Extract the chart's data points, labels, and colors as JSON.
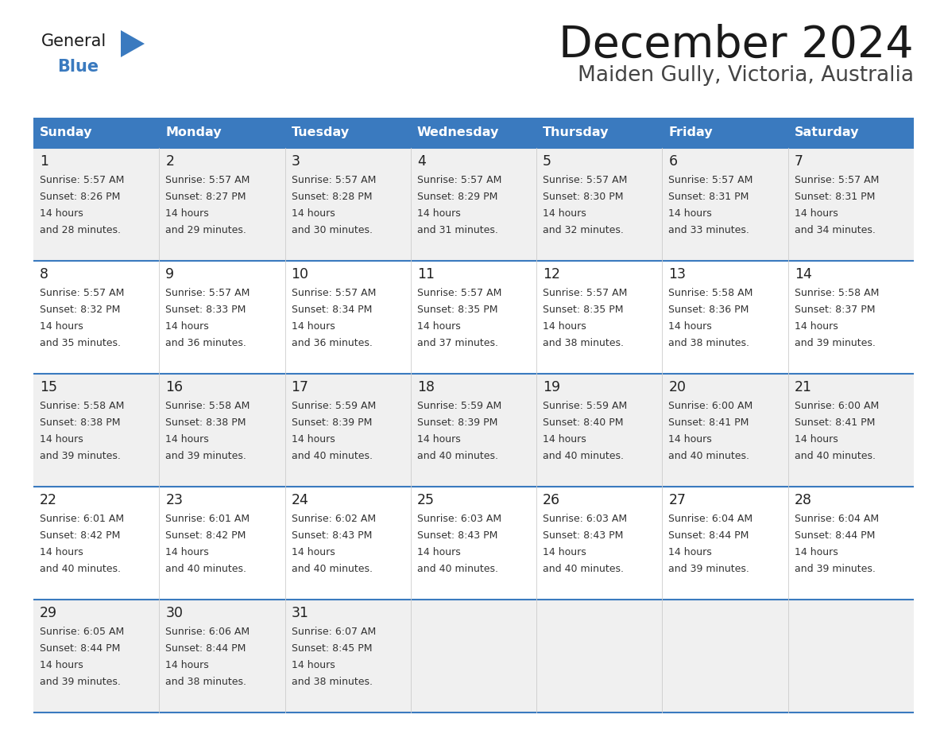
{
  "title": "December 2024",
  "subtitle": "Maiden Gully, Victoria, Australia",
  "days_of_week": [
    "Sunday",
    "Monday",
    "Tuesday",
    "Wednesday",
    "Thursday",
    "Friday",
    "Saturday"
  ],
  "header_bg": "#3a7abf",
  "header_text": "#ffffff",
  "row_bg_odd": "#f0f0f0",
  "row_bg_even": "#ffffff",
  "cell_text": "#333333",
  "day_num_color": "#222222",
  "title_color": "#1a1a1a",
  "subtitle_color": "#444444",
  "logo_general_color": "#1a1a1a",
  "logo_blue_color": "#3a7abf",
  "border_color": "#3a7abf",
  "calendar_data": [
    [
      {
        "day": 1,
        "sunrise": "5:57 AM",
        "sunset": "8:26 PM",
        "daylight": "14 hours and 28 minutes."
      },
      {
        "day": 2,
        "sunrise": "5:57 AM",
        "sunset": "8:27 PM",
        "daylight": "14 hours and 29 minutes."
      },
      {
        "day": 3,
        "sunrise": "5:57 AM",
        "sunset": "8:28 PM",
        "daylight": "14 hours and 30 minutes."
      },
      {
        "day": 4,
        "sunrise": "5:57 AM",
        "sunset": "8:29 PM",
        "daylight": "14 hours and 31 minutes."
      },
      {
        "day": 5,
        "sunrise": "5:57 AM",
        "sunset": "8:30 PM",
        "daylight": "14 hours and 32 minutes."
      },
      {
        "day": 6,
        "sunrise": "5:57 AM",
        "sunset": "8:31 PM",
        "daylight": "14 hours and 33 minutes."
      },
      {
        "day": 7,
        "sunrise": "5:57 AM",
        "sunset": "8:31 PM",
        "daylight": "14 hours and 34 minutes."
      }
    ],
    [
      {
        "day": 8,
        "sunrise": "5:57 AM",
        "sunset": "8:32 PM",
        "daylight": "14 hours and 35 minutes."
      },
      {
        "day": 9,
        "sunrise": "5:57 AM",
        "sunset": "8:33 PM",
        "daylight": "14 hours and 36 minutes."
      },
      {
        "day": 10,
        "sunrise": "5:57 AM",
        "sunset": "8:34 PM",
        "daylight": "14 hours and 36 minutes."
      },
      {
        "day": 11,
        "sunrise": "5:57 AM",
        "sunset": "8:35 PM",
        "daylight": "14 hours and 37 minutes."
      },
      {
        "day": 12,
        "sunrise": "5:57 AM",
        "sunset": "8:35 PM",
        "daylight": "14 hours and 38 minutes."
      },
      {
        "day": 13,
        "sunrise": "5:58 AM",
        "sunset": "8:36 PM",
        "daylight": "14 hours and 38 minutes."
      },
      {
        "day": 14,
        "sunrise": "5:58 AM",
        "sunset": "8:37 PM",
        "daylight": "14 hours and 39 minutes."
      }
    ],
    [
      {
        "day": 15,
        "sunrise": "5:58 AM",
        "sunset": "8:38 PM",
        "daylight": "14 hours and 39 minutes."
      },
      {
        "day": 16,
        "sunrise": "5:58 AM",
        "sunset": "8:38 PM",
        "daylight": "14 hours and 39 minutes."
      },
      {
        "day": 17,
        "sunrise": "5:59 AM",
        "sunset": "8:39 PM",
        "daylight": "14 hours and 40 minutes."
      },
      {
        "day": 18,
        "sunrise": "5:59 AM",
        "sunset": "8:39 PM",
        "daylight": "14 hours and 40 minutes."
      },
      {
        "day": 19,
        "sunrise": "5:59 AM",
        "sunset": "8:40 PM",
        "daylight": "14 hours and 40 minutes."
      },
      {
        "day": 20,
        "sunrise": "6:00 AM",
        "sunset": "8:41 PM",
        "daylight": "14 hours and 40 minutes."
      },
      {
        "day": 21,
        "sunrise": "6:00 AM",
        "sunset": "8:41 PM",
        "daylight": "14 hours and 40 minutes."
      }
    ],
    [
      {
        "day": 22,
        "sunrise": "6:01 AM",
        "sunset": "8:42 PM",
        "daylight": "14 hours and 40 minutes."
      },
      {
        "day": 23,
        "sunrise": "6:01 AM",
        "sunset": "8:42 PM",
        "daylight": "14 hours and 40 minutes."
      },
      {
        "day": 24,
        "sunrise": "6:02 AM",
        "sunset": "8:43 PM",
        "daylight": "14 hours and 40 minutes."
      },
      {
        "day": 25,
        "sunrise": "6:03 AM",
        "sunset": "8:43 PM",
        "daylight": "14 hours and 40 minutes."
      },
      {
        "day": 26,
        "sunrise": "6:03 AM",
        "sunset": "8:43 PM",
        "daylight": "14 hours and 40 minutes."
      },
      {
        "day": 27,
        "sunrise": "6:04 AM",
        "sunset": "8:44 PM",
        "daylight": "14 hours and 39 minutes."
      },
      {
        "day": 28,
        "sunrise": "6:04 AM",
        "sunset": "8:44 PM",
        "daylight": "14 hours and 39 minutes."
      }
    ],
    [
      {
        "day": 29,
        "sunrise": "6:05 AM",
        "sunset": "8:44 PM",
        "daylight": "14 hours and 39 minutes."
      },
      {
        "day": 30,
        "sunrise": "6:06 AM",
        "sunset": "8:44 PM",
        "daylight": "14 hours and 38 minutes."
      },
      {
        "day": 31,
        "sunrise": "6:07 AM",
        "sunset": "8:45 PM",
        "daylight": "14 hours and 38 minutes."
      },
      null,
      null,
      null,
      null
    ]
  ]
}
